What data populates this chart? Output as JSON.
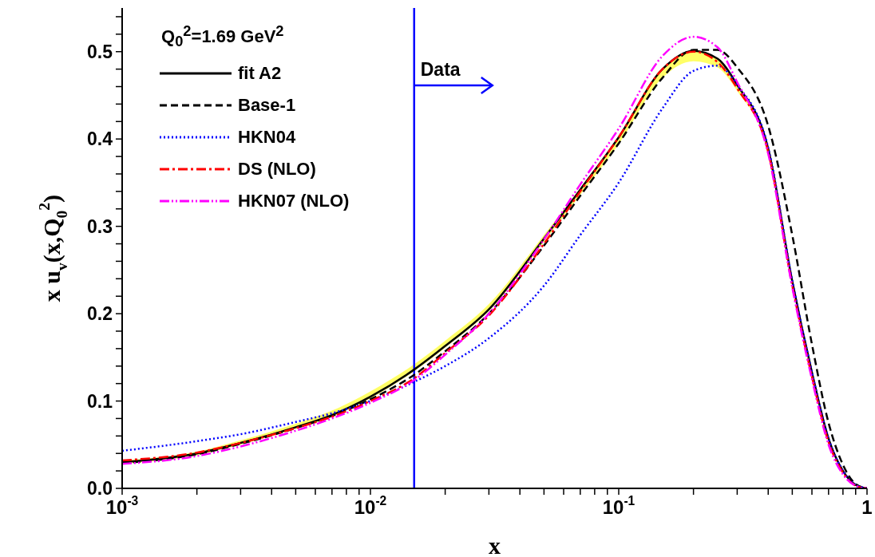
{
  "chart_data": {
    "type": "line",
    "xlabel": "x",
    "ylabel": "x u$_{v}$(x,Q$_{0}$$^{2}$)",
    "legend_title": "Q$_{0}$$^{2}$=1.69 GeV$^{2}$",
    "log": "x",
    "legend": "top left",
    "grid": false,
    "xlim": [
      0.001,
      1
    ],
    "xticks": [
      {
        "value": 0.001,
        "label": "10$^{-3}$"
      },
      {
        "value": 0.002,
        "label": null
      },
      {
        "value": 0.003,
        "label": null
      },
      {
        "value": 0.004,
        "label": null
      },
      {
        "value": 0.005,
        "label": null
      },
      {
        "value": 0.006,
        "label": null
      },
      {
        "value": 0.007,
        "label": null
      },
      {
        "value": 0.008,
        "label": null
      },
      {
        "value": 0.009,
        "label": null
      },
      {
        "value": 0.01,
        "label": "10$^{-2}$"
      },
      {
        "value": 0.02,
        "label": null
      },
      {
        "value": 0.03,
        "label": null
      },
      {
        "value": 0.04,
        "label": null
      },
      {
        "value": 0.05,
        "label": null
      },
      {
        "value": 0.06,
        "label": null
      },
      {
        "value": 0.07,
        "label": null
      },
      {
        "value": 0.08,
        "label": null
      },
      {
        "value": 0.09,
        "label": null
      },
      {
        "value": 0.1,
        "label": "10$^{-1}$"
      },
      {
        "value": 0.2,
        "label": null
      },
      {
        "value": 0.3,
        "label": null
      },
      {
        "value": 0.4,
        "label": null
      },
      {
        "value": 0.5,
        "label": null
      },
      {
        "value": 0.6,
        "label": null
      },
      {
        "value": 0.7,
        "label": null
      },
      {
        "value": 0.8,
        "label": null
      },
      {
        "value": 0.9,
        "label": null
      },
      1
    ],
    "ylim": [
      0,
      0.55
    ],
    "yticks": [
      {
        "value": 0,
        "label": "0.0"
      },
      {
        "value": 0.02,
        "label": null
      },
      {
        "value": 0.04,
        "label": null
      },
      {
        "value": 0.06,
        "label": null
      },
      {
        "value": 0.08,
        "label": null
      },
      {
        "value": 0.1,
        "label": "0.1"
      },
      {
        "value": 0.12,
        "label": null
      },
      {
        "value": 0.14,
        "label": null
      },
      {
        "value": 0.16,
        "label": null
      },
      {
        "value": 0.18,
        "label": null
      },
      {
        "value": 0.2,
        "label": "0.2"
      },
      {
        "value": 0.22,
        "label": null
      },
      {
        "value": 0.24,
        "label": null
      },
      {
        "value": 0.26,
        "label": null
      },
      {
        "value": 0.28,
        "label": null
      },
      {
        "value": 0.3,
        "label": "0.3"
      },
      {
        "value": 0.32,
        "label": null
      },
      {
        "value": 0.34,
        "label": null
      },
      {
        "value": 0.36,
        "label": null
      },
      {
        "value": 0.38,
        "label": null
      },
      {
        "value": 0.4,
        "label": "0.4"
      },
      {
        "value": 0.42,
        "label": null
      },
      {
        "value": 0.44,
        "label": null
      },
      {
        "value": 0.46,
        "label": null
      },
      {
        "value": 0.48,
        "label": null
      },
      {
        "value": 0.5,
        "label": "0.5"
      },
      {
        "value": 0.52,
        "label": null
      },
      {
        "value": 0.54,
        "label": null
      }
    ],
    "x": [
      0.001,
      0.002,
      0.003,
      0.005,
      0.007,
      0.01,
      0.015,
      0.02,
      0.03,
      0.05,
      0.07,
      0.1,
      0.15,
      0.2,
      0.25,
      0.3,
      0.4,
      0.5,
      0.6,
      0.7,
      0.8,
      0.9,
      1
    ],
    "series": [
      {
        "name": "fit A2",
        "color": "#000000",
        "line_style": "solid",
        "values": [
          0.03,
          0.04,
          0.052,
          0.07,
          0.084,
          0.105,
          0.136,
          0.163,
          0.205,
          0.286,
          0.342,
          0.402,
          0.48,
          0.501,
          0.492,
          0.462,
          0.389,
          0.237,
          0.133,
          0.057,
          0.02,
          0.004,
          0
        ],
        "lower": [
          0.028,
          0.038,
          0.05,
          0.068,
          0.082,
          0.103,
          0.134,
          0.161,
          0.203,
          0.282,
          0.336,
          0.394,
          0.47,
          0.489,
          0.482,
          0.455,
          0.385,
          0.234,
          0.131,
          0.056,
          0.019,
          0.003,
          0
        ],
        "upper": [
          0.032,
          0.042,
          0.055,
          0.074,
          0.089,
          0.111,
          0.142,
          0.169,
          0.211,
          0.29,
          0.344,
          0.403,
          0.481,
          0.501,
          0.492,
          0.463,
          0.39,
          0.238,
          0.134,
          0.058,
          0.021,
          0.005,
          0
        ]
      },
      {
        "name": "Base-1",
        "color": "#000000",
        "line_style": "dashed",
        "values": [
          0.029,
          0.039,
          0.051,
          0.069,
          0.083,
          0.102,
          0.13,
          0.157,
          0.2,
          0.278,
          0.335,
          0.395,
          0.47,
          0.502,
          0.502,
          0.482,
          0.415,
          0.29,
          0.165,
          0.075,
          0.027,
          0.005,
          0
        ]
      },
      {
        "name": "HKN04",
        "color": "#0000ff",
        "line_style": "dotted",
        "values": [
          0.043,
          0.054,
          0.062,
          0.076,
          0.086,
          0.1,
          0.122,
          0.14,
          0.172,
          0.232,
          0.29,
          0.35,
          0.435,
          0.478,
          0.484,
          0.462,
          0.39,
          0.238,
          0.133,
          0.057,
          0.02,
          0.004,
          0
        ]
      },
      {
        "name": "DS (NLO)",
        "color": "#ff0000",
        "line_style": "dashdot",
        "values": [
          0.032,
          0.041,
          0.052,
          0.069,
          0.082,
          0.1,
          0.126,
          0.155,
          0.198,
          0.28,
          0.34,
          0.402,
          0.48,
          0.5,
          0.488,
          0.458,
          0.385,
          0.232,
          0.128,
          0.053,
          0.018,
          0.003,
          0
        ]
      },
      {
        "name": "HKN07 (NLO)",
        "color": "#ff00ff",
        "line_style": "dashdotdot",
        "values": [
          0.028,
          0.037,
          0.048,
          0.066,
          0.08,
          0.098,
          0.124,
          0.153,
          0.2,
          0.285,
          0.348,
          0.412,
          0.495,
          0.517,
          0.505,
          0.465,
          0.383,
          0.23,
          0.125,
          0.05,
          0.016,
          0.003,
          0
        ]
      }
    ],
    "ref_lines": [
      {
        "axis": "x",
        "value": 0.015,
        "label": "Data",
        "color": "#0000ff"
      }
    ]
  }
}
